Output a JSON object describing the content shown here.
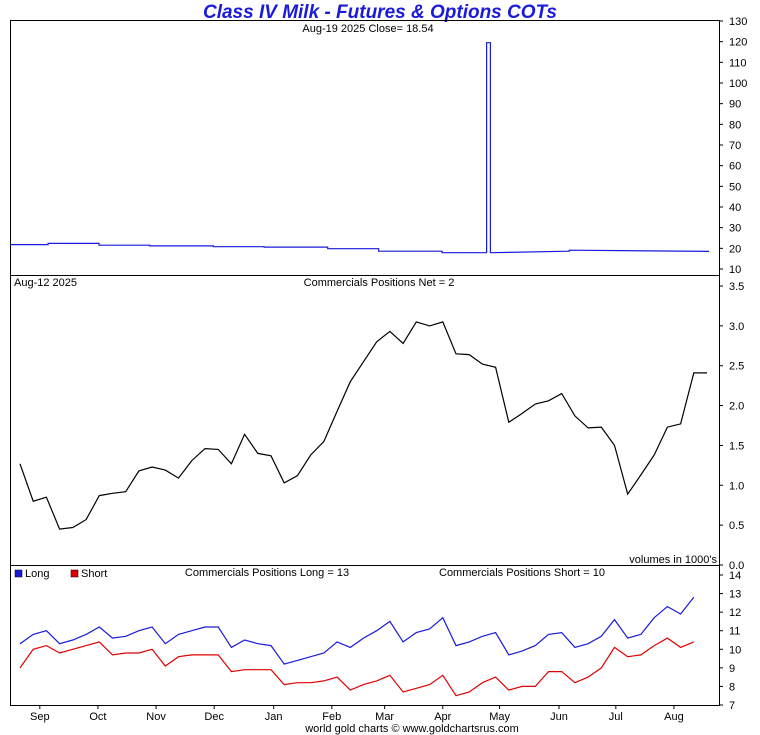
{
  "header": {
    "title": "Class IV Milk - Futures & Options COTs"
  },
  "footer": {
    "credit": "world gold charts © www.goldchartsrus.com"
  },
  "colors": {
    "title": "#1a1adb",
    "price": "#1a1adb",
    "net": "#000000",
    "long": "#1a1adb",
    "short": "#e00000"
  },
  "chart_data": [
    {
      "type": "line",
      "panel": "price",
      "annotation": "Aug-19  2025   Close= 18.54",
      "ylim": [
        10,
        130
      ],
      "yticks": [
        10,
        20,
        30,
        40,
        50,
        60,
        70,
        80,
        90,
        100,
        110,
        120,
        130
      ],
      "x_week_range": [
        0,
        55
      ],
      "series": [
        {
          "x": [
            0,
            3,
            3,
            7,
            7,
            11,
            11,
            16,
            16,
            20,
            20,
            25,
            25,
            29,
            29,
            34,
            34,
            37.5,
            37.5,
            37.8,
            37.8,
            44,
            44,
            55
          ],
          "values": [
            21.8,
            21.8,
            22.4,
            22.4,
            21.5,
            21.5,
            21.2,
            21.2,
            20.8,
            20.8,
            20.6,
            20.6,
            19.8,
            19.8,
            18.6,
            18.6,
            17.9,
            17.9,
            119.5,
            119.5,
            17.9,
            18.6,
            19.1,
            18.5
          ]
        }
      ]
    },
    {
      "type": "line",
      "panel": "commercials-net",
      "date": "Aug-12  2025",
      "label": "Commercials Positions Net = 2",
      "note": "volumes in 1000's",
      "ylim": [
        0,
        3.5
      ],
      "yticks": [
        0.0,
        0.5,
        1.0,
        1.5,
        2.0,
        2.5,
        3.0,
        3.5
      ],
      "ytick_labels": [
        "0.0",
        "0.5",
        "1.0",
        "1.5",
        "2.0",
        "2.5",
        "3.0",
        "3.5"
      ],
      "series": [
        {
          "x": [
            0,
            1,
            2,
            3,
            4,
            5,
            6,
            7,
            8,
            9,
            10,
            11,
            12,
            13,
            14,
            15,
            16,
            17,
            18,
            19,
            20,
            21,
            22,
            23,
            24,
            25,
            26,
            27,
            28,
            29,
            30,
            31,
            32,
            33,
            34,
            35,
            36,
            37,
            38,
            39,
            40,
            41,
            42,
            43,
            44,
            45,
            46,
            47,
            48,
            49,
            50,
            51,
            52
          ],
          "values": [
            1.27,
            0.8,
            0.85,
            0.45,
            0.47,
            0.57,
            0.87,
            0.9,
            0.92,
            1.18,
            1.23,
            1.19,
            1.09,
            1.31,
            1.46,
            1.45,
            1.27,
            1.64,
            1.4,
            1.37,
            1.03,
            1.12,
            1.38,
            1.55,
            1.93,
            2.3,
            2.55,
            2.8,
            2.93,
            2.78,
            3.05,
            3.0,
            3.05,
            2.65,
            2.64,
            2.52,
            2.48,
            1.79,
            1.9,
            2.02,
            2.06,
            2.15,
            1.87,
            1.72,
            1.73,
            1.5,
            0.89,
            1.13,
            1.38,
            1.73,
            1.77,
            2.41,
            2.41
          ]
        }
      ]
    },
    {
      "type": "line",
      "panel": "commercials-long-short",
      "legend": [
        "Long",
        "Short"
      ],
      "label_long": "Commercials Positions Long = 13",
      "label_short": "Commercials Positions Short = 10",
      "ylim": [
        7,
        14
      ],
      "yticks": [
        7,
        8,
        9,
        10,
        11,
        12,
        13,
        14
      ],
      "xticks": [
        {
          "label": "Sep",
          "x": 1.5
        },
        {
          "label": "Oct",
          "x": 5.9
        },
        {
          "label": "Nov",
          "x": 10.3
        },
        {
          "label": "Dec",
          "x": 14.7
        },
        {
          "label": "Jan",
          "x": 19.2
        },
        {
          "label": "Feb",
          "x": 23.6
        },
        {
          "label": "Mar",
          "x": 27.6
        },
        {
          "label": "Apr",
          "x": 32.0
        },
        {
          "label": "May",
          "x": 36.3
        },
        {
          "label": "Jun",
          "x": 40.8
        },
        {
          "label": "Jul",
          "x": 45.1
        },
        {
          "label": "Aug",
          "x": 49.5
        }
      ],
      "series": [
        {
          "name": "Long",
          "x": [
            0,
            1,
            2,
            3,
            4,
            5,
            6,
            7,
            8,
            9,
            10,
            11,
            12,
            13,
            14,
            15,
            16,
            17,
            18,
            19,
            20,
            21,
            22,
            23,
            24,
            25,
            26,
            27,
            28,
            29,
            30,
            31,
            32,
            33,
            34,
            35,
            36,
            37,
            38,
            39,
            40,
            41,
            42,
            43,
            44,
            45,
            46,
            47,
            48,
            49,
            50,
            51
          ],
          "values": [
            10.3,
            10.8,
            11.0,
            10.3,
            10.5,
            10.8,
            11.2,
            10.6,
            10.7,
            11.0,
            11.2,
            10.3,
            10.8,
            11.0,
            11.2,
            11.2,
            10.1,
            10.5,
            10.3,
            10.2,
            9.2,
            9.4,
            9.6,
            9.8,
            10.4,
            10.1,
            10.6,
            11.0,
            11.5,
            10.4,
            10.9,
            11.1,
            11.7,
            10.2,
            10.4,
            10.7,
            10.9,
            9.7,
            9.9,
            10.2,
            10.8,
            10.9,
            10.1,
            10.3,
            10.7,
            11.6,
            10.6,
            10.8,
            11.7,
            12.3,
            11.9,
            12.8
          ]
        },
        {
          "name": "Short",
          "x": [
            0,
            1,
            2,
            3,
            4,
            5,
            6,
            7,
            8,
            9,
            10,
            11,
            12,
            13,
            14,
            15,
            16,
            17,
            18,
            19,
            20,
            21,
            22,
            23,
            24,
            25,
            26,
            27,
            28,
            29,
            30,
            31,
            32,
            33,
            34,
            35,
            36,
            37,
            38,
            39,
            40,
            41,
            42,
            43,
            44,
            45,
            46,
            47,
            48,
            49,
            50,
            51
          ],
          "values": [
            9.0,
            10.0,
            10.2,
            9.8,
            10.0,
            10.2,
            10.4,
            9.7,
            9.8,
            9.8,
            10.0,
            9.1,
            9.6,
            9.7,
            9.7,
            9.7,
            8.8,
            8.9,
            8.9,
            8.9,
            8.1,
            8.2,
            8.2,
            8.3,
            8.5,
            7.8,
            8.1,
            8.3,
            8.6,
            7.7,
            7.9,
            8.1,
            8.6,
            7.5,
            7.7,
            8.2,
            8.5,
            7.8,
            8.0,
            8.0,
            8.8,
            8.8,
            8.2,
            8.5,
            9.0,
            10.1,
            9.6,
            9.7,
            10.2,
            10.6,
            10.1,
            10.4
          ]
        }
      ]
    }
  ]
}
